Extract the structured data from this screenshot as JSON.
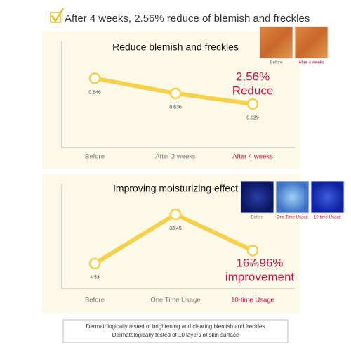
{
  "headline": "After 4 weeks, 2.56% reduce of blemish and freckles",
  "chart_data": [
    {
      "type": "line",
      "title": "Reduce blemish and freckles",
      "categories": [
        "Before",
        "After 2 weeks",
        "After 4 weeks"
      ],
      "values": [
        0.646,
        0.636,
        0.629
      ],
      "color": "#f5d04a",
      "ylim": [
        0.6,
        0.67
      ],
      "annotation": [
        "2.56%",
        "Reduce"
      ],
      "photos": [
        "Before",
        "After 4 weeks"
      ]
    },
    {
      "type": "line",
      "title": "Improving moisturizing effect",
      "categories": [
        "Before",
        "One Time Usage",
        "10-time Usage"
      ],
      "values": [
        4.53,
        33.45,
        12.15
      ],
      "color": "#f5d04a",
      "ylim": [
        -10,
        50
      ],
      "annotation": [
        "167.96%",
        "improvement"
      ],
      "photos": [
        "Before",
        "One Time Usage",
        "10-time Usage"
      ]
    }
  ],
  "footnotes": [
    "Dermatologically tested of brightening and clearing blemish and freckles",
    "Dermatologically tested of 10 layers of skin surface"
  ]
}
